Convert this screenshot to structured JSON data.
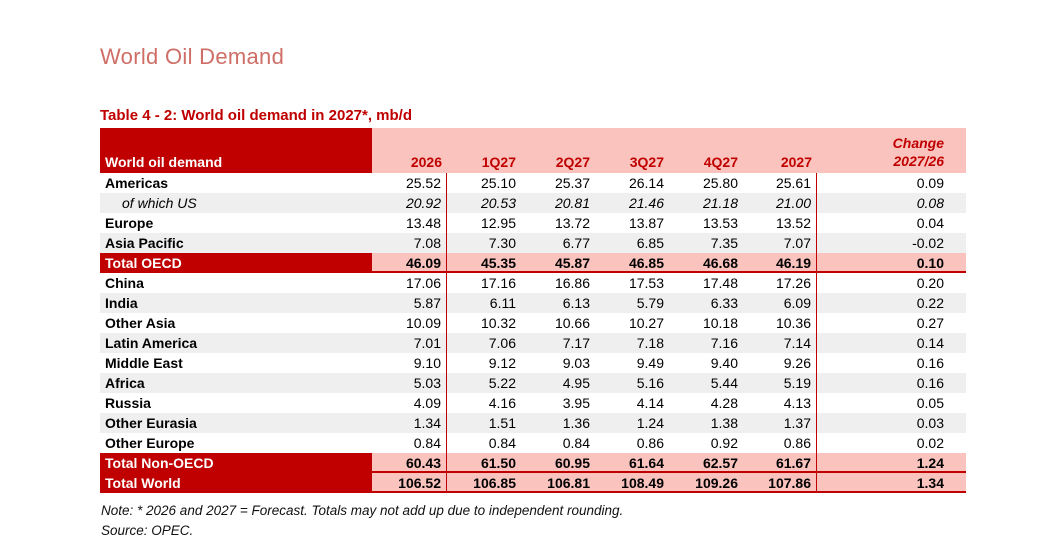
{
  "page": {
    "title": "World Oil Demand",
    "table_title": "Table 4 - 2: World oil demand in 2027*, mb/d",
    "note": "Note: * 2026 and 2027 = Forecast. Totals may not add up due to independent rounding.",
    "source": "Source: OPEC."
  },
  "colors": {
    "dark_red": "#C00000",
    "header_pink": "#FAC3BE",
    "stripe_gray": "#EFEFEF",
    "title_salmon": "#CE6E66"
  },
  "table": {
    "corner_label": "World oil demand",
    "columns": [
      "2026",
      "1Q27",
      "2Q27",
      "3Q27",
      "4Q27",
      "2027"
    ],
    "change_header": {
      "line1": "Change",
      "line2": "2027/26"
    },
    "rows": [
      {
        "label": "Americas",
        "kind": "normal",
        "stripe": false,
        "values": [
          "25.52",
          "25.10",
          "25.37",
          "26.14",
          "25.80",
          "25.61"
        ],
        "change": "0.09"
      },
      {
        "label": "of which US",
        "kind": "sub",
        "stripe": true,
        "values": [
          "20.92",
          "20.53",
          "20.81",
          "21.46",
          "21.18",
          "21.00"
        ],
        "change": "0.08"
      },
      {
        "label": "Europe",
        "kind": "normal",
        "stripe": false,
        "values": [
          "13.48",
          "12.95",
          "13.72",
          "13.87",
          "13.53",
          "13.52"
        ],
        "change": "0.04"
      },
      {
        "label": "Asia Pacific",
        "kind": "normal",
        "stripe": true,
        "values": [
          "7.08",
          "7.30",
          "6.77",
          "6.85",
          "7.35",
          "7.07"
        ],
        "change": "-0.02"
      },
      {
        "label": "Total OECD",
        "kind": "total",
        "stripe": false,
        "values": [
          "46.09",
          "45.35",
          "45.87",
          "46.85",
          "46.68",
          "46.19"
        ],
        "change": "0.10"
      },
      {
        "label": "China",
        "kind": "normal",
        "stripe": false,
        "values": [
          "17.06",
          "17.16",
          "16.86",
          "17.53",
          "17.48",
          "17.26"
        ],
        "change": "0.20"
      },
      {
        "label": "India",
        "kind": "normal",
        "stripe": true,
        "values": [
          "5.87",
          "6.11",
          "6.13",
          "5.79",
          "6.33",
          "6.09"
        ],
        "change": "0.22"
      },
      {
        "label": "Other Asia",
        "kind": "normal",
        "stripe": false,
        "values": [
          "10.09",
          "10.32",
          "10.66",
          "10.27",
          "10.18",
          "10.36"
        ],
        "change": "0.27"
      },
      {
        "label": "Latin America",
        "kind": "normal",
        "stripe": true,
        "values": [
          "7.01",
          "7.06",
          "7.17",
          "7.18",
          "7.16",
          "7.14"
        ],
        "change": "0.14"
      },
      {
        "label": "Middle East",
        "kind": "normal",
        "stripe": false,
        "values": [
          "9.10",
          "9.12",
          "9.03",
          "9.49",
          "9.40",
          "9.26"
        ],
        "change": "0.16"
      },
      {
        "label": "Africa",
        "kind": "normal",
        "stripe": true,
        "values": [
          "5.03",
          "5.22",
          "4.95",
          "5.16",
          "5.44",
          "5.19"
        ],
        "change": "0.16"
      },
      {
        "label": "Russia",
        "kind": "normal",
        "stripe": false,
        "values": [
          "4.09",
          "4.16",
          "3.95",
          "4.14",
          "4.28",
          "4.13"
        ],
        "change": "0.05"
      },
      {
        "label": "Other Eurasia",
        "kind": "normal",
        "stripe": true,
        "values": [
          "1.34",
          "1.51",
          "1.36",
          "1.24",
          "1.38",
          "1.37"
        ],
        "change": "0.03"
      },
      {
        "label": "Other Europe",
        "kind": "normal",
        "stripe": false,
        "values": [
          "0.84",
          "0.84",
          "0.84",
          "0.86",
          "0.92",
          "0.86"
        ],
        "change": "0.02"
      },
      {
        "label": "Total Non-OECD",
        "kind": "total",
        "stripe": false,
        "values": [
          "60.43",
          "61.50",
          "60.95",
          "61.64",
          "62.57",
          "61.67"
        ],
        "change": "1.24"
      },
      {
        "label": "Total World",
        "kind": "total",
        "stripe": false,
        "values": [
          "106.52",
          "106.85",
          "106.81",
          "108.49",
          "109.26",
          "107.86"
        ],
        "change": "1.34"
      }
    ]
  }
}
